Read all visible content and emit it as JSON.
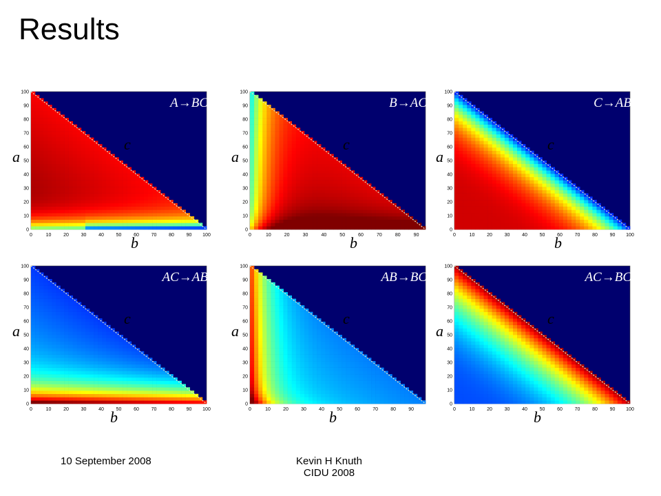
{
  "slide": {
    "title": "Results",
    "footer_date": "10 September 2008",
    "footer_author": "Kevin H Knuth",
    "footer_conf": "CIDU 2008"
  },
  "chart_data": [
    {
      "type": "heatmap",
      "label": "A→BC",
      "xlabel": "b",
      "ylabel": "a",
      "diag_label": "c",
      "xlim": [
        0,
        100
      ],
      "ylim": [
        0,
        100
      ],
      "xticks": [
        0,
        10,
        20,
        30,
        40,
        50,
        60,
        70,
        80,
        90,
        100
      ],
      "yticks": [
        0,
        10,
        20,
        30,
        40,
        50,
        60,
        70,
        80,
        90,
        100
      ],
      "pattern": "ABC"
    },
    {
      "type": "heatmap",
      "label": "B→AC",
      "xlabel": "b",
      "ylabel": "a",
      "diag_label": "c",
      "xlim": [
        0,
        95
      ],
      "ylim": [
        0,
        100
      ],
      "xticks": [
        0,
        10,
        20,
        30,
        40,
        50,
        60,
        70,
        80,
        90
      ],
      "yticks": [
        0,
        10,
        20,
        30,
        40,
        50,
        60,
        70,
        80,
        90,
        100
      ],
      "pattern": "BAC"
    },
    {
      "type": "heatmap",
      "label": "C→AB",
      "xlabel": "b",
      "ylabel": "a",
      "diag_label": "c",
      "xlim": [
        0,
        100
      ],
      "ylim": [
        0,
        100
      ],
      "xticks": [
        0,
        10,
        20,
        30,
        40,
        50,
        60,
        70,
        80,
        90,
        100
      ],
      "yticks": [
        0,
        10,
        20,
        30,
        40,
        50,
        60,
        70,
        80,
        90,
        100
      ],
      "pattern": "CAB"
    },
    {
      "type": "heatmap",
      "label": "AC→AB",
      "xlabel": "b",
      "ylabel": "a",
      "diag_label": "c",
      "xlim": [
        0,
        100
      ],
      "ylim": [
        0,
        100
      ],
      "xticks": [
        0,
        10,
        20,
        30,
        40,
        50,
        60,
        70,
        80,
        90,
        100
      ],
      "yticks": [
        0,
        10,
        20,
        30,
        40,
        50,
        60,
        70,
        80,
        90,
        100
      ],
      "pattern": "ACAB"
    },
    {
      "type": "heatmap",
      "label": "AB→BC",
      "xlabel": "b",
      "ylabel": "a",
      "diag_label": "c",
      "xlim": [
        0,
        98
      ],
      "ylim": [
        0,
        100
      ],
      "xticks": [
        0,
        10,
        20,
        30,
        40,
        50,
        60,
        70,
        80,
        90
      ],
      "yticks": [
        0,
        10,
        20,
        30,
        40,
        50,
        60,
        70,
        80,
        90,
        100
      ],
      "pattern": "ABBC"
    },
    {
      "type": "heatmap",
      "label": "AC→BC",
      "xlabel": "b",
      "ylabel": "a",
      "diag_label": "c",
      "xlim": [
        0,
        100
      ],
      "ylim": [
        0,
        100
      ],
      "xticks": [
        0,
        10,
        20,
        30,
        40,
        50,
        60,
        70,
        80,
        90,
        100
      ],
      "yticks": [
        0,
        10,
        20,
        30,
        40,
        50,
        60,
        70,
        80,
        90,
        100
      ],
      "pattern": "ACBC"
    }
  ]
}
